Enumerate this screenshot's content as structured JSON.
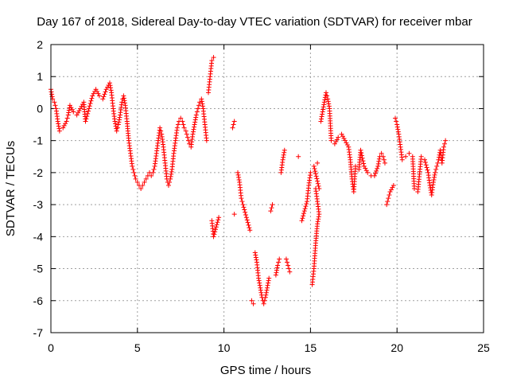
{
  "chart_data": {
    "type": "scatter",
    "title": "Day 167 of 2018, Sidereal Day-to-day VTEC variation (SDTVAR) for receiver mbar",
    "xlabel": "GPS time / hours",
    "ylabel": "SDTVAR / TECUs",
    "xlim": [
      0,
      25
    ],
    "ylim": [
      -7,
      2
    ],
    "x_ticks": [
      0,
      5,
      10,
      15,
      20,
      25
    ],
    "y_ticks": [
      -7,
      -6,
      -5,
      -4,
      -3,
      -2,
      -1,
      0,
      1,
      2
    ],
    "grid": true,
    "marker": "+",
    "color": "#ff0000",
    "series": [
      {
        "name": "SDTVAR",
        "trace": [
          [
            0.0,
            0.6
          ],
          [
            0.1,
            0.3
          ],
          [
            0.2,
            0.2
          ],
          [
            0.3,
            0.0
          ],
          [
            0.4,
            -0.4
          ],
          [
            0.5,
            -0.7
          ],
          [
            0.7,
            -0.6
          ],
          [
            0.9,
            -0.4
          ],
          [
            1.0,
            -0.2
          ],
          [
            1.1,
            0.1
          ],
          [
            1.3,
            -0.1
          ],
          [
            1.5,
            -0.2
          ],
          [
            1.7,
            0.0
          ],
          [
            1.9,
            0.2
          ],
          [
            2.0,
            -0.4
          ],
          [
            2.2,
            0.0
          ],
          [
            2.4,
            0.4
          ],
          [
            2.6,
            0.6
          ],
          [
            2.8,
            0.4
          ],
          [
            3.0,
            0.3
          ],
          [
            3.2,
            0.6
          ],
          [
            3.4,
            0.8
          ],
          [
            3.5,
            0.5
          ],
          [
            3.6,
            0.0
          ],
          [
            3.7,
            -0.4
          ],
          [
            3.8,
            -0.7
          ],
          [
            3.9,
            -0.5
          ],
          [
            4.0,
            -0.2
          ],
          [
            4.1,
            0.2
          ],
          [
            4.2,
            0.4
          ],
          [
            4.3,
            0.1
          ],
          [
            4.4,
            -0.4
          ],
          [
            4.5,
            -1.0
          ],
          [
            4.6,
            -1.4
          ],
          [
            4.7,
            -1.8
          ],
          [
            4.8,
            -2.0
          ],
          [
            4.9,
            -2.2
          ],
          [
            5.0,
            -2.3
          ],
          [
            5.1,
            -2.4
          ],
          [
            5.2,
            -2.5
          ],
          [
            5.3,
            -2.4
          ],
          [
            5.4,
            -2.3
          ],
          [
            5.5,
            -2.2
          ],
          [
            5.6,
            -2.1
          ],
          [
            5.7,
            -2.0
          ],
          [
            5.8,
            -2.1
          ],
          [
            5.9,
            -2.0
          ],
          [
            6.0,
            -1.8
          ],
          [
            6.1,
            -1.4
          ],
          [
            6.2,
            -1.0
          ],
          [
            6.3,
            -0.6
          ],
          [
            6.4,
            -0.8
          ],
          [
            6.5,
            -1.2
          ],
          [
            6.6,
            -1.7
          ],
          [
            6.7,
            -2.2
          ],
          [
            6.8,
            -2.4
          ],
          [
            6.9,
            -2.2
          ],
          [
            7.0,
            -1.9
          ],
          [
            7.1,
            -1.4
          ],
          [
            7.2,
            -1.0
          ],
          [
            7.3,
            -0.6
          ],
          [
            7.4,
            -0.4
          ],
          [
            7.5,
            -0.3
          ],
          [
            7.6,
            -0.4
          ],
          [
            7.7,
            -0.6
          ],
          [
            7.8,
            -0.7
          ],
          [
            7.9,
            -0.9
          ],
          [
            8.0,
            -1.1
          ],
          [
            8.1,
            -1.2
          ],
          [
            8.2,
            -0.8
          ],
          [
            8.3,
            -0.5
          ],
          [
            8.4,
            -0.2
          ],
          [
            8.5,
            0.0
          ],
          [
            8.6,
            0.2
          ],
          [
            8.7,
            0.3
          ],
          [
            8.8,
            0.0
          ],
          [
            8.9,
            -0.5
          ],
          [
            9.0,
            -1.0
          ],
          [
            9.1,
            0.5
          ],
          [
            9.2,
            1.0
          ],
          [
            9.3,
            1.5
          ],
          [
            9.4,
            1.6
          ],
          [
            9.3,
            -3.5
          ],
          [
            9.4,
            -4.0
          ],
          [
            9.7,
            -3.4
          ],
          [
            10.5,
            -0.6
          ],
          [
            10.6,
            -0.4
          ],
          [
            10.6,
            -3.3
          ],
          [
            10.8,
            -2.0
          ],
          [
            10.9,
            -2.3
          ],
          [
            11.0,
            -2.8
          ],
          [
            11.1,
            -3.0
          ],
          [
            11.3,
            -3.4
          ],
          [
            11.5,
            -3.8
          ],
          [
            11.6,
            -6.0
          ],
          [
            11.7,
            -6.1
          ],
          [
            11.8,
            -4.5
          ],
          [
            11.9,
            -4.8
          ],
          [
            12.0,
            -5.3
          ],
          [
            12.1,
            -5.6
          ],
          [
            12.2,
            -5.9
          ],
          [
            12.3,
            -6.1
          ],
          [
            12.4,
            -5.9
          ],
          [
            12.5,
            -5.6
          ],
          [
            12.6,
            -5.3
          ],
          [
            12.7,
            -3.2
          ],
          [
            12.8,
            -3.0
          ],
          [
            13.0,
            -5.2
          ],
          [
            13.1,
            -4.9
          ],
          [
            13.2,
            -4.7
          ],
          [
            13.3,
            -2.0
          ],
          [
            13.4,
            -1.6
          ],
          [
            13.5,
            -1.3
          ],
          [
            13.6,
            -4.7
          ],
          [
            13.7,
            -4.9
          ],
          [
            13.8,
            -5.1
          ],
          [
            14.3,
            -1.5
          ],
          [
            14.5,
            -3.5
          ],
          [
            14.8,
            -2.9
          ],
          [
            14.9,
            -2.4
          ],
          [
            15.0,
            -2.0
          ],
          [
            15.1,
            -5.5
          ],
          [
            15.2,
            -5.0
          ],
          [
            15.3,
            -4.2
          ],
          [
            15.4,
            -3.6
          ],
          [
            15.5,
            -3.3
          ],
          [
            15.3,
            -2.5
          ],
          [
            15.5,
            -2.5
          ],
          [
            15.2,
            -1.8
          ],
          [
            15.4,
            -1.7
          ],
          [
            15.6,
            -0.4
          ],
          [
            15.9,
            0.5
          ],
          [
            16.0,
            0.3
          ],
          [
            16.1,
            0.0
          ],
          [
            16.2,
            -1.0
          ],
          [
            16.4,
            -1.1
          ],
          [
            16.6,
            -0.9
          ],
          [
            16.8,
            -0.8
          ],
          [
            17.0,
            -1.0
          ],
          [
            17.2,
            -1.2
          ],
          [
            17.3,
            -1.6
          ],
          [
            17.4,
            -2.2
          ],
          [
            17.5,
            -2.6
          ],
          [
            17.6,
            -1.8
          ],
          [
            17.8,
            -1.9
          ],
          [
            17.9,
            -1.3
          ],
          [
            18.1,
            -1.8
          ],
          [
            18.3,
            -2.0
          ],
          [
            18.5,
            -2.1
          ],
          [
            18.7,
            -2.1
          ],
          [
            18.9,
            -1.8
          ],
          [
            19.0,
            -1.5
          ],
          [
            19.1,
            -1.4
          ],
          [
            19.2,
            -1.5
          ],
          [
            19.3,
            -1.7
          ],
          [
            19.4,
            -3.0
          ],
          [
            19.5,
            -2.8
          ],
          [
            19.6,
            -2.6
          ],
          [
            19.8,
            -2.4
          ],
          [
            19.9,
            -0.3
          ],
          [
            20.0,
            -0.5
          ],
          [
            20.1,
            -0.8
          ],
          [
            20.3,
            -1.6
          ],
          [
            20.5,
            -1.5
          ],
          [
            20.7,
            -1.4
          ],
          [
            20.9,
            -1.5
          ],
          [
            21.0,
            -2.5
          ],
          [
            21.2,
            -2.6
          ],
          [
            21.4,
            -1.5
          ],
          [
            21.6,
            -1.6
          ],
          [
            21.8,
            -2.0
          ],
          [
            21.9,
            -2.4
          ],
          [
            22.0,
            -2.7
          ],
          [
            22.1,
            -2.3
          ],
          [
            22.2,
            -2.0
          ],
          [
            22.3,
            -1.8
          ],
          [
            22.4,
            -1.6
          ],
          [
            22.5,
            -1.3
          ],
          [
            22.6,
            -1.7
          ],
          [
            22.7,
            -1.2
          ],
          [
            22.8,
            -1.0
          ]
        ]
      }
    ]
  }
}
